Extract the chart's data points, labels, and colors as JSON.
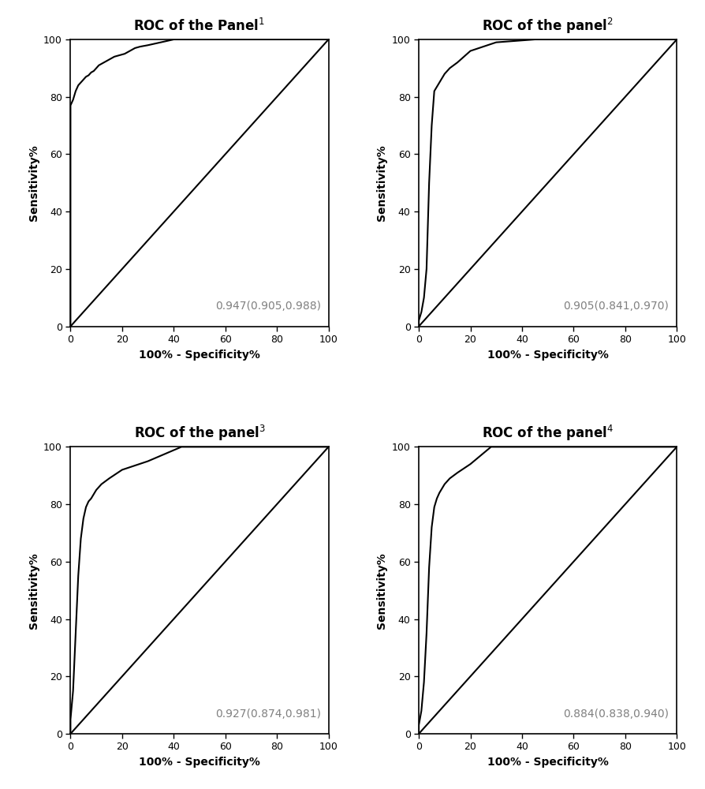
{
  "panels": [
    {
      "title": "ROC of the Panel",
      "superscript": "1",
      "auc_text": "0.947(0.905,0.988)",
      "roc_x": [
        0,
        0,
        1,
        2,
        3,
        4,
        5,
        6,
        7,
        8,
        9,
        10,
        11,
        13,
        15,
        17,
        19,
        21,
        23,
        25,
        27,
        30,
        35,
        40,
        100
      ],
      "roc_y": [
        0,
        77,
        79,
        82,
        84,
        85,
        86,
        87,
        87.5,
        88.5,
        89,
        90,
        91,
        92,
        93,
        94,
        94.5,
        95,
        96,
        97,
        97.5,
        98,
        99,
        100,
        100
      ]
    },
    {
      "title": "ROC of the panel",
      "superscript": "2",
      "auc_text": "0.905(0.841,0.970)",
      "roc_x": [
        0,
        0,
        1,
        2,
        3,
        4,
        5,
        6,
        8,
        10,
        12,
        15,
        20,
        30,
        45,
        100
      ],
      "roc_y": [
        0,
        2,
        5,
        10,
        20,
        50,
        70,
        82,
        85,
        88,
        90,
        92,
        96,
        99,
        100,
        100
      ]
    },
    {
      "title": "ROC of the panel",
      "superscript": "3",
      "auc_text": "0.927(0.874,0.981)",
      "roc_x": [
        0,
        0,
        1,
        2,
        3,
        4,
        5,
        6,
        7,
        8,
        10,
        12,
        15,
        20,
        30,
        43,
        100
      ],
      "roc_y": [
        0,
        5,
        15,
        35,
        55,
        68,
        75,
        79,
        81,
        82,
        85,
        87,
        89,
        92,
        95,
        100,
        100
      ]
    },
    {
      "title": "ROC of the panel",
      "superscript": "4",
      "auc_text": "0.884(0.838,0.940)",
      "roc_x": [
        0,
        0,
        1,
        2,
        3,
        4,
        5,
        6,
        7,
        8,
        10,
        12,
        15,
        20,
        28,
        100
      ],
      "roc_y": [
        0,
        3,
        8,
        18,
        35,
        58,
        72,
        79,
        82,
        84,
        87,
        89,
        91,
        94,
        100,
        100
      ]
    }
  ],
  "line_color": "#000000",
  "diag_color": "#000000",
  "background_color": "#ffffff",
  "text_color": "#808080",
  "xlabel": "100% - Specificity%",
  "ylabel": "Sensitivity%",
  "xlim": [
    0,
    100
  ],
  "ylim": [
    0,
    100
  ],
  "xticks": [
    0,
    20,
    40,
    60,
    80,
    100
  ],
  "yticks": [
    0,
    20,
    40,
    60,
    80,
    100
  ],
  "title_fontsize": 12,
  "axis_fontsize": 10,
  "tick_fontsize": 9,
  "auc_fontsize": 10,
  "line_width": 1.5
}
